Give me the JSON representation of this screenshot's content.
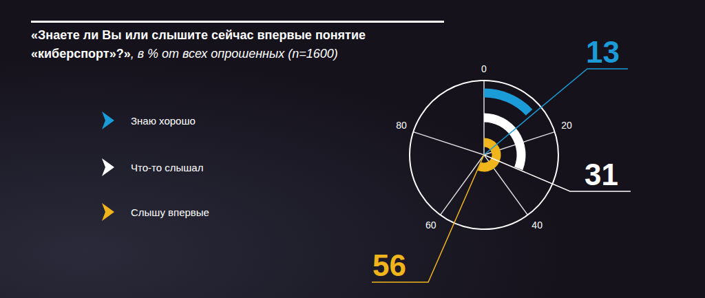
{
  "chart_data": {
    "type": "polar_bar",
    "title": "«Знаете ли Вы или слышите сейчас впервые понятие «киберспорт»?»",
    "subtitle": ", в % от всех опрошенных (n=1600)",
    "categories": [
      "Знаю хорошо",
      "Что-то слышал",
      "Слышу впервые"
    ],
    "values": [
      13,
      31,
      56
    ],
    "colors": [
      "#1b9bd7",
      "#ffffff",
      "#f1b51c"
    ],
    "xlim": [
      0,
      100
    ],
    "xticks": [
      0,
      20,
      40,
      60,
      80
    ],
    "data_labels": true,
    "legend": "left"
  }
}
